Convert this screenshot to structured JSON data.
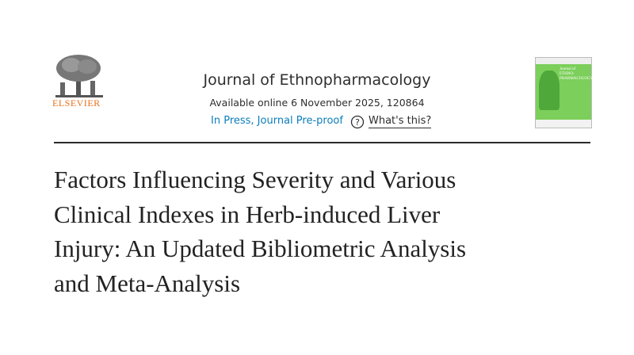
{
  "publisher": "ELSEVIER",
  "header": {
    "journal": "Journal of Ethnopharmacology",
    "availability": "Available online 6 November 2025, 120864",
    "status": "In Press, Journal Pre-proof",
    "help_link": "What's this?"
  },
  "cover": {
    "lines": [
      "Journal of",
      "ETHNO-",
      "PHARMACOLOGY"
    ]
  },
  "article": {
    "title_lines": [
      "Factors Influencing Severity and Various",
      "Clinical Indexes in Herb-induced Liver",
      "Injury: An Updated Bibliometric Analysis",
      "and Meta-Analysis"
    ]
  }
}
